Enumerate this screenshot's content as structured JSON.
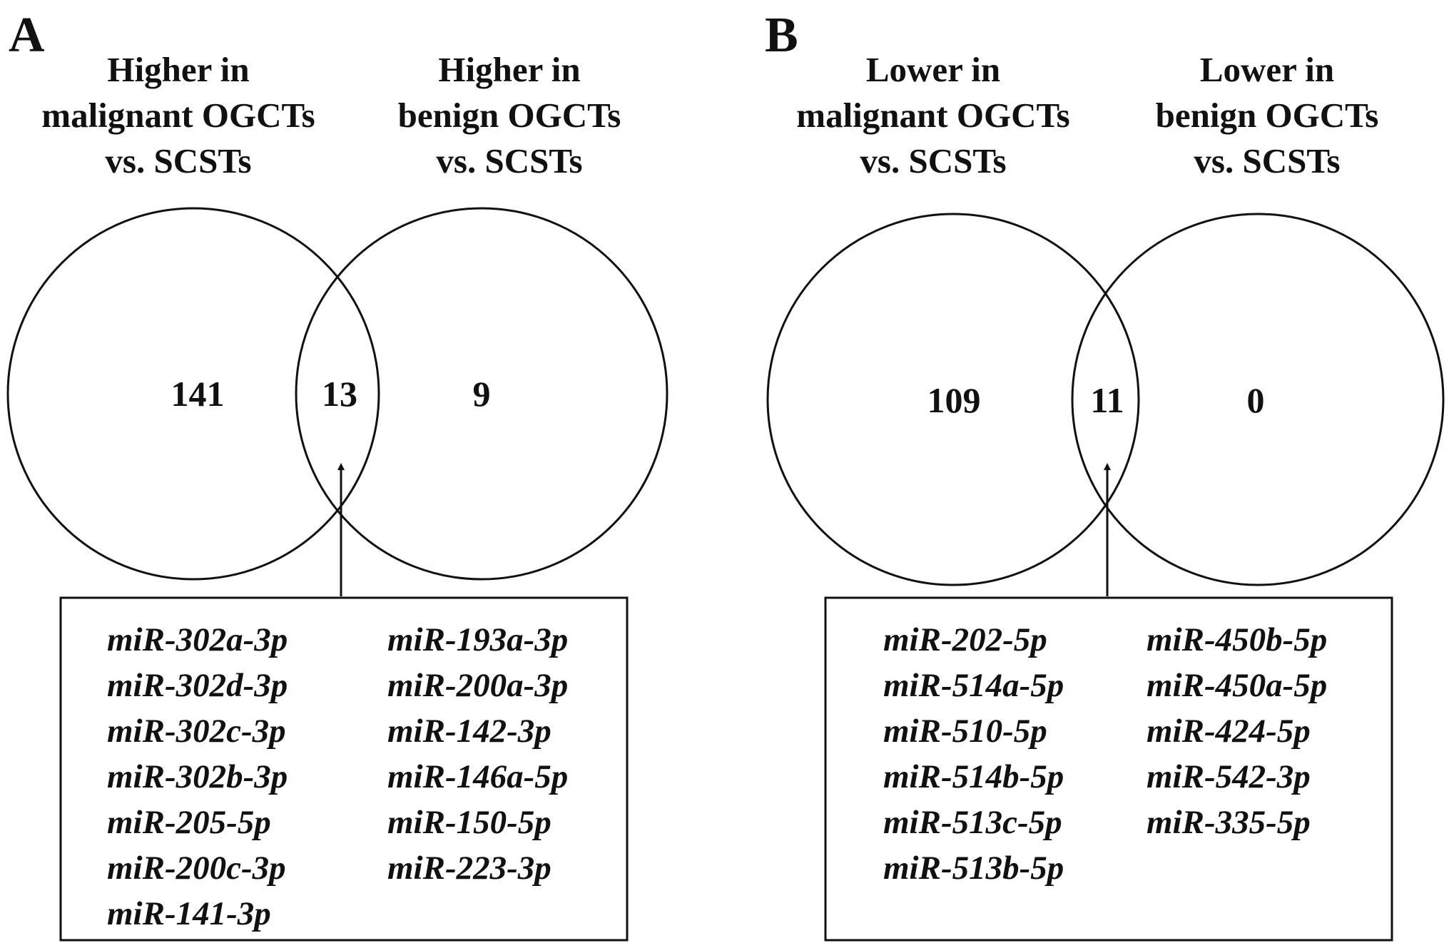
{
  "panels": [
    {
      "letter": "A",
      "left_title": [
        "Higher in",
        "malignant OGCTs",
        "vs. SCSTs"
      ],
      "right_title": [
        "Higher in",
        "benign OGCTs",
        "vs. SCSTs"
      ],
      "counts": {
        "left_only": "141",
        "overlap": "13",
        "right_only": "9"
      },
      "mirnas_col1": [
        "miR-302a-3p",
        "miR-302d-3p",
        "miR-302c-3p",
        "miR-302b-3p",
        "miR-205-5p",
        "miR-200c-3p",
        "miR-141-3p"
      ],
      "mirnas_col2": [
        "miR-193a-3p",
        "miR-200a-3p",
        "miR-142-3p",
        "miR-146a-5p",
        "miR-150-5p",
        "miR-223-3p"
      ]
    },
    {
      "letter": "B",
      "left_title": [
        "Lower in",
        "malignant OGCTs",
        "vs. SCSTs"
      ],
      "right_title": [
        "Lower in",
        "benign OGCTs",
        "vs. SCSTs"
      ],
      "counts": {
        "left_only": "109",
        "overlap": "11",
        "right_only": "0"
      },
      "mirnas_col1": [
        "miR-202-5p",
        "miR-514a-5p",
        "miR-510-5p",
        "miR-514b-5p",
        "miR-513c-5p",
        "miR-513b-5p"
      ],
      "mirnas_col2": [
        "miR-450b-5p",
        "miR-450a-5p",
        "miR-424-5p",
        "miR-542-3p",
        "miR-335-5p"
      ]
    }
  ],
  "colors": {
    "ink": "#111111",
    "background": "#ffffff"
  }
}
